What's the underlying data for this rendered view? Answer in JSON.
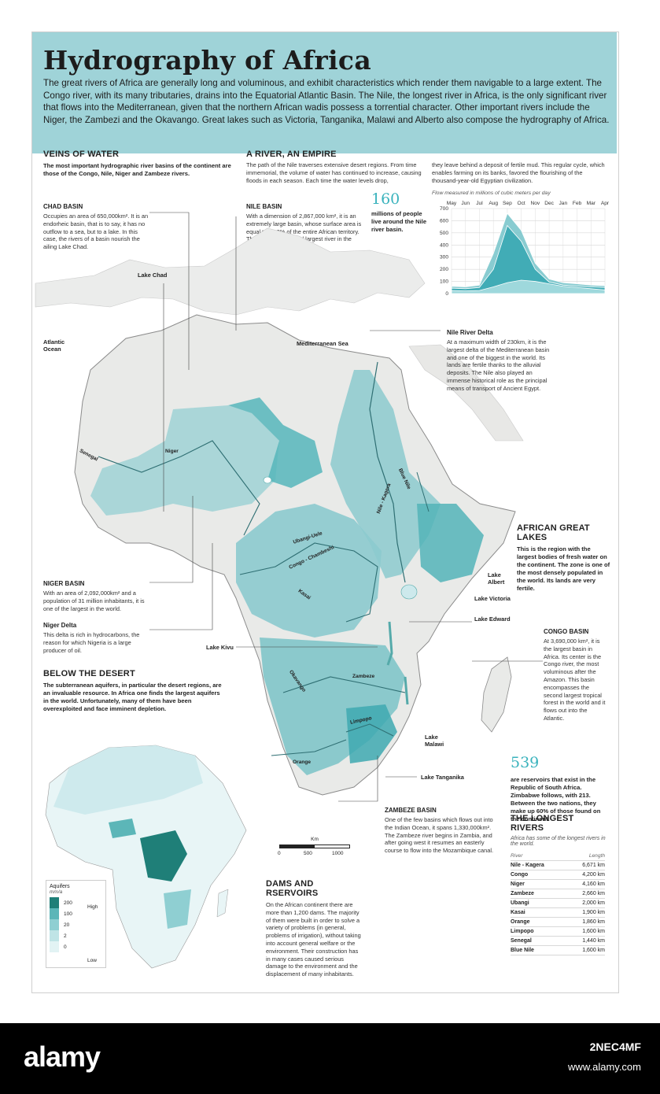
{
  "header": {
    "title": "Hydrography of Africa",
    "intro": "The great rivers of Africa are generally long and voluminous, and exhibit characteristics which render them navigable to a large extent. The Congo river, with its many tributaries, drains into the Equatorial Atlantic Basin. The Nile, the longest river in Africa, is the only significant river that flows into the Mediterranean, given that the northern African wadis possess a torrential character. Other important rivers include the Niger, the Zambezi and the Okavango. Great lakes such as Victoria, Tanganika, Malawi and Alberto also compose the hydrography of Africa."
  },
  "veins": {
    "heading": "VEINS OF WATER",
    "text": "The most  important hydrographic river basins of the continent are those of the Congo, Nile, Niger and Zambeze rivers."
  },
  "empire": {
    "heading": "A RIVER, AN EMPIRE",
    "text1": "The path of the Nile traverses extensive desert regions. From time immemorial, the volume of water has continued to increase, causing floods in each season. Each time the water levels drop,",
    "text2": "they leave behind a deposit of fertile mud. This regular cycle, which enables farming on its banks, favored the flourishing of the thousand-year-old Egyptian civilization.",
    "stat": "160",
    "stat_text": "millions of people live around the Nile river basin."
  },
  "chart_data": {
    "type": "area",
    "title": "Flow measured in millions of cubic meters per day",
    "categories": [
      "May",
      "Jun",
      "Jul",
      "Aug",
      "Sep",
      "Oct",
      "Nov",
      "Dec",
      "Jan",
      "Feb",
      "Mar",
      "Apr"
    ],
    "ylim": [
      0,
      700
    ],
    "yticks": [
      0,
      100,
      200,
      300,
      400,
      500,
      600,
      700
    ],
    "series": [
      {
        "values": [
          60,
          55,
          70,
          330,
          660,
          520,
          250,
          120,
          90,
          80,
          70,
          65
        ]
      },
      {
        "values": [
          45,
          40,
          50,
          200,
          560,
          430,
          200,
          95,
          70,
          62,
          55,
          50
        ]
      },
      {
        "values": [
          25,
          22,
          25,
          55,
          90,
          110,
          100,
          80,
          60,
          50,
          40,
          30
        ]
      }
    ],
    "colors": [
      "#7cc6cc",
      "#3aa9b2",
      "#a8dde0"
    ]
  },
  "chad": {
    "heading": "CHAD BASIN",
    "text": "Occupies an area of 650,000km². It is an endorheic basin, that is to say, it has no outflow to a sea, but to a lake. In this case, the rivers of a basin nourish the ailing Lake Chad."
  },
  "nile_basin": {
    "heading": "NILE BASIN",
    "text": "With a dimension of 2,867,000 km², it is an extremely large basin, whose surface area is equal to 10.3% of the entire African territory. The Nile is the second largest river in the world."
  },
  "nile_delta": {
    "heading": "Nile River Delta",
    "text": "At a maximum width of 230km, it is the largest delta of the Mediterranean basin and one of the biggest in the world. Its lands are fertile thanks to the alluvial deposits. The Nile also played an immense historical role as the principal means of transport of Ancient Egypt."
  },
  "great_lakes": {
    "heading": "AFRICAN GREAT LAKES",
    "text": "This is the region with the largest bodies of fresh water on the continent. The zone is one of the most densely populated in the world. Its lands are very fertile."
  },
  "congo_basin": {
    "heading": "CONGO BASIN",
    "text": "At 3,690,000 km², it is the largest basin in Africa. Its center is the Congo river, the most voluminous after the Amazon. This basin encompasses the second largest tropical forest in the world and it flows out into the Atlantic."
  },
  "niger_basin": {
    "heading": "NIGER BASIN",
    "text": "With an area of 2,092,000km² and a population of 31 million inhabitants, it is one of the largest in the world."
  },
  "niger_delta": {
    "heading": "Niger Delta",
    "text": "This delta is rich in hydrocarbons, the reason for which Nigeria is a large producer of oil."
  },
  "desert": {
    "heading": "BELOW THE DESERT",
    "text": "The subterranean aquifers, in particular the desert regions, are an invaluable resource. In Africa one finds the largest aquifers in the world. Unfortunately, many of them have been overexploited and face imminent depletion."
  },
  "reservoirs": {
    "stat": "539",
    "text": "are reservoirs that exist in the Republic of South Africa. Zimbabwe follows, with 213. Between the two nations, they make up 60% of those found on the continent."
  },
  "zambeze": {
    "heading": "ZAMBEZE BASIN",
    "text": "One of the few basins which flows out into the Indian Ocean, it spans 1,330,000km². The Zambeze river begins in Zambia, and after going west it resumes an easterly course to flow into the Mozambique canal."
  },
  "dams": {
    "heading": "DAMS AND RSERVOIRS",
    "text": "On the African continent there are more than 1,200 dams. The majority of them were built in order to solve a variety of problems (in general, problems of irrigation), without taking into account general welfare or the environment. Their construction has in many cases caused serious damage to the environment and the displacement of many inhabitants."
  },
  "longest": {
    "heading": "THE LONGEST RIVERS",
    "subtitle": "Africa has some of the longest rivers in the world.",
    "col_river": "River",
    "col_length": "Length",
    "rows": [
      {
        "name": "Nile - Kagera",
        "len": "6,671 km"
      },
      {
        "name": "Congo",
        "len": "4,200 km"
      },
      {
        "name": "Niger",
        "len": "4,160 km"
      },
      {
        "name": "Zambeze",
        "len": "2,660 km"
      },
      {
        "name": "Ubangi",
        "len": "2,000 km"
      },
      {
        "name": "Kasai",
        "len": "1,900 km"
      },
      {
        "name": "Orange",
        "len": "1,860 km"
      },
      {
        "name": "Limpopo",
        "len": "1,600 km"
      },
      {
        "name": "Senegal",
        "len": "1,440 km"
      },
      {
        "name": "Blue Nile",
        "len": "1,600 km"
      }
    ]
  },
  "aquifers": {
    "title": "Aquifers",
    "unit": "mm/a",
    "high": "High",
    "low": "Low",
    "levels": [
      "200",
      "100",
      "20",
      "2",
      "0"
    ],
    "colors": [
      "#1f7f78",
      "#5cb6b8",
      "#8fcfd2",
      "#bfe4e6",
      "#e2f3f4"
    ]
  },
  "scale": {
    "unit": "Km",
    "t0": "0",
    "t1": "500",
    "t2": "1000"
  },
  "map_labels": {
    "lake_chad": "Lake Chad",
    "atlantic": "Atlantic Ocean",
    "mediterranean": "Mediterranean Sea",
    "lake_albert": "Lake Albert",
    "lake_victoria": "Lake Victoria",
    "lake_edward": "Lake Edward",
    "lake_kivu": "Lake Kivu",
    "lake_malawi": "Lake Malawi",
    "lake_tanganika": "Lake Tanganika"
  },
  "river_labels": {
    "senegal": "Senegal",
    "niger": "Niger",
    "blue_nile": "Blue Nile",
    "nile_kagera": "Nile - Kagera",
    "ubangi": "Ubangi-Uele",
    "congo": "Congo - Chambeshi",
    "kasai": "Kasai",
    "okavango": "Okavango",
    "zambeze": "Zambeze",
    "limpopo": "Limpopo",
    "orange": "Orange"
  },
  "watermark": {
    "brand": "alamy",
    "image_id": "2NEC4MF",
    "site": "www.alamy.com"
  }
}
